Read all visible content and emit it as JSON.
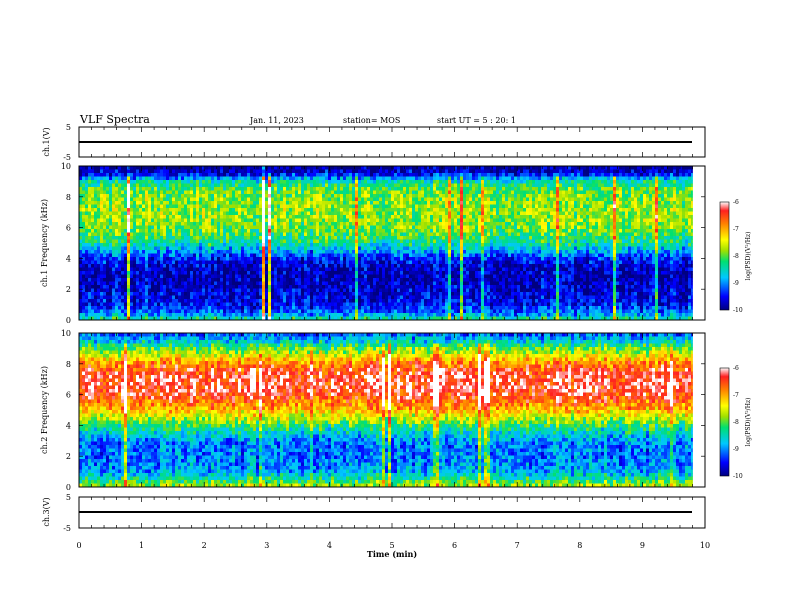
{
  "header": {
    "title": "VLF Spectra",
    "date": "Jan. 11, 2023",
    "station": "station= MOS",
    "start": "start UT =  5 : 20: 1"
  },
  "chart_data": [
    {
      "type": "line",
      "panel": "ch.1(V)",
      "ylabel": "ch.1(V)",
      "ylim": [
        -5,
        5
      ],
      "yticks": [
        "5",
        "-5"
      ],
      "x": [
        0,
        9.8
      ],
      "y": [
        0,
        0
      ],
      "grid": false
    },
    {
      "type": "heatmap",
      "panel": "ch.1 spectrogram",
      "ylabel": "ch.1 Frequency (kHz)",
      "xlim": [
        0,
        10
      ],
      "ylim": [
        0,
        10
      ],
      "data_xmax": 9.8,
      "yticks": [
        "0",
        "2",
        "4",
        "6",
        "8",
        "10"
      ],
      "colorbar": {
        "label": "log(PSD)(V²/Hz)",
        "range": [
          -10,
          -6
        ],
        "ticks": [
          "-6",
          "-7",
          "-8",
          "-9",
          "-10"
        ]
      },
      "profile_freq_khz": [
        0,
        0.5,
        1,
        1.5,
        2,
        2.5,
        3,
        3.5,
        4,
        4.5,
        5,
        5.5,
        6,
        6.5,
        7,
        7.5,
        8,
        8.5,
        9,
        9.5,
        10
      ],
      "profile_log_psd": [
        -8.2,
        -9.2,
        -9.5,
        -9.6,
        -9.7,
        -9.8,
        -9.8,
        -9.7,
        -9.4,
        -8.9,
        -8.4,
        -8.1,
        -7.9,
        -7.8,
        -7.8,
        -7.8,
        -7.9,
        -8.0,
        -8.5,
        -9.6,
        -10.0
      ]
    },
    {
      "type": "heatmap",
      "panel": "ch.2 spectrogram",
      "ylabel": "ch.2 Frequency (kHz)",
      "xlim": [
        0,
        10
      ],
      "ylim": [
        0,
        10
      ],
      "data_xmax": 9.8,
      "yticks": [
        "0",
        "2",
        "4",
        "6",
        "8",
        "10"
      ],
      "colorbar": {
        "label": "log(PSD)(V²/Hz)",
        "range": [
          -10,
          -6
        ],
        "ticks": [
          "-6",
          "-7",
          "-8",
          "-9",
          "-10"
        ]
      },
      "profile_freq_khz": [
        0,
        0.5,
        1,
        1.5,
        2,
        2.5,
        3,
        3.5,
        4,
        4.5,
        5,
        5.5,
        6,
        6.5,
        7,
        7.5,
        8,
        8.5,
        9,
        9.5,
        10
      ],
      "profile_log_psd": [
        -7.6,
        -8.3,
        -8.9,
        -9.0,
        -9.1,
        -9.1,
        -9.0,
        -8.6,
        -8.2,
        -7.6,
        -7.1,
        -6.7,
        -6.4,
        -6.3,
        -6.3,
        -6.4,
        -6.8,
        -7.4,
        -8.0,
        -8.7,
        -9.3
      ]
    },
    {
      "type": "line",
      "panel": "ch.3(V)",
      "ylabel": "ch.3(V)",
      "ylim": [
        -5,
        5
      ],
      "yticks": [
        "5",
        "-5"
      ],
      "x": [
        0,
        9.8
      ],
      "y": [
        0,
        0
      ],
      "grid": false
    }
  ],
  "xaxis": {
    "label": "Time (min)",
    "xlim": [
      0,
      10
    ],
    "ticks": [
      "0",
      "1",
      "2",
      "3",
      "4",
      "5",
      "6",
      "7",
      "8",
      "9",
      "10"
    ]
  }
}
